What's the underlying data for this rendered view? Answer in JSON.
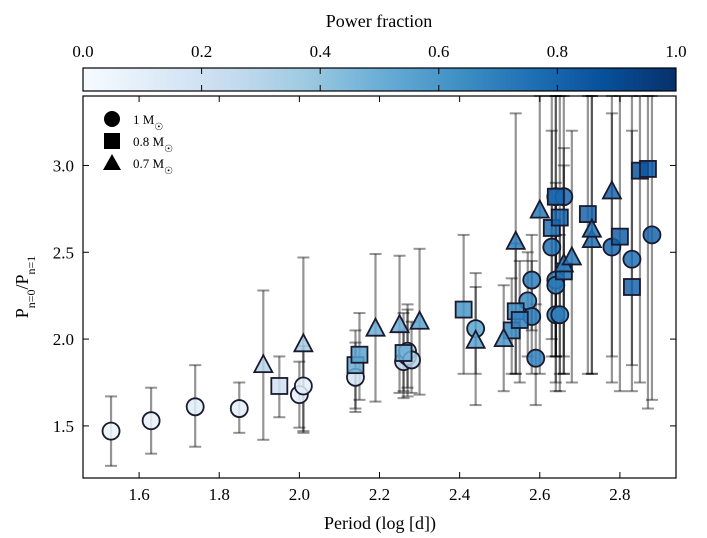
{
  "chart_data": {
    "type": "scatter",
    "xlabel": "Period (log [d])",
    "ylabel_main": "P",
    "ylabel_sub_num": "n=0",
    "ylabel_sep": "/P",
    "ylabel_sub_den": "n=1",
    "xlim": [
      1.46,
      2.94
    ],
    "ylim": [
      1.2,
      3.4
    ],
    "xticks": [
      "1.6",
      "1.8",
      "2.0",
      "2.2",
      "2.4",
      "2.6",
      "2.8"
    ],
    "yticks": [
      "1.5",
      "2.0",
      "2.5",
      "3.0"
    ],
    "grid": false,
    "colorbar": {
      "label": "Power fraction",
      "range": [
        0.0,
        1.0
      ],
      "ticks": [
        "0.0",
        "0.2",
        "0.4",
        "0.6",
        "0.8",
        "1.0"
      ],
      "colors": [
        "#f7fbff",
        "#deebf7",
        "#c6dbef",
        "#9ecae1",
        "#6baed6",
        "#4292c6",
        "#2171b5",
        "#08519c",
        "#08306b"
      ]
    },
    "legend": {
      "position": "top-left",
      "entries": [
        {
          "marker": "circle",
          "label": "1 M",
          "symbol": "☉"
        },
        {
          "marker": "square",
          "label": "0.8 M",
          "symbol": "☉"
        },
        {
          "marker": "triangle",
          "label": "0.7 M",
          "symbol": "☉"
        }
      ]
    },
    "series": [
      {
        "name": "1 M☉",
        "marker": "circle",
        "points": [
          {
            "x": 1.53,
            "y": 1.47,
            "lo": 1.27,
            "hi": 1.67,
            "c": 0.05
          },
          {
            "x": 1.63,
            "y": 1.53,
            "lo": 1.34,
            "hi": 1.72,
            "c": 0.08
          },
          {
            "x": 1.74,
            "y": 1.61,
            "lo": 1.38,
            "hi": 1.85,
            "c": 0.12
          },
          {
            "x": 1.85,
            "y": 1.6,
            "lo": 1.46,
            "hi": 1.75,
            "c": 0.1
          },
          {
            "x": 2.0,
            "y": 1.68,
            "lo": 1.49,
            "hi": 1.87,
            "c": 0.1
          },
          {
            "x": 2.01,
            "y": 1.73,
            "lo": 1.47,
            "hi": 1.96,
            "c": 0.1
          },
          {
            "x": 2.14,
            "y": 1.78,
            "lo": 1.58,
            "hi": 1.98,
            "c": 0.18
          },
          {
            "x": 2.26,
            "y": 1.87,
            "lo": 1.66,
            "hi": 2.05,
            "c": 0.25
          },
          {
            "x": 2.27,
            "y": 1.9,
            "lo": 1.67,
            "hi": 2.2,
            "c": 0.35
          },
          {
            "x": 2.27,
            "y": 1.93,
            "lo": 1.72,
            "hi": 2.17,
            "c": 0.3
          },
          {
            "x": 2.28,
            "y": 1.88,
            "lo": 1.69,
            "hi": 2.1,
            "c": 0.3
          },
          {
            "x": 2.44,
            "y": 2.06,
            "lo": 1.8,
            "hi": 2.3,
            "c": 0.55
          },
          {
            "x": 2.57,
            "y": 2.22,
            "lo": 1.9,
            "hi": 2.5,
            "c": 0.65
          },
          {
            "x": 2.58,
            "y": 2.34,
            "lo": 2.05,
            "hi": 2.6,
            "c": 0.7
          },
          {
            "x": 2.58,
            "y": 2.13,
            "lo": 1.8,
            "hi": 2.45,
            "c": 0.72
          },
          {
            "x": 2.59,
            "y": 1.89,
            "lo": 1.62,
            "hi": 2.2,
            "c": 0.68
          },
          {
            "x": 2.63,
            "y": 2.53,
            "lo": 2.0,
            "hi": 3.2,
            "c": 0.75
          },
          {
            "x": 2.64,
            "y": 2.82,
            "lo": 1.9,
            "hi": 3.4,
            "c": 0.78
          },
          {
            "x": 2.64,
            "y": 2.34,
            "lo": 1.9,
            "hi": 2.8,
            "c": 0.7
          },
          {
            "x": 2.64,
            "y": 2.31,
            "lo": 1.75,
            "hi": 2.9,
            "c": 0.72
          },
          {
            "x": 2.64,
            "y": 2.14,
            "lo": 1.7,
            "hi": 2.6,
            "c": 0.7
          },
          {
            "x": 2.65,
            "y": 2.14,
            "lo": 1.7,
            "hi": 2.6,
            "c": 0.7
          },
          {
            "x": 2.66,
            "y": 2.82,
            "lo": 1.9,
            "hi": 3.4,
            "c": 0.8
          },
          {
            "x": 2.78,
            "y": 2.53,
            "lo": 1.9,
            "hi": 3.3,
            "c": 0.78
          },
          {
            "x": 2.83,
            "y": 2.46,
            "lo": 1.85,
            "hi": 3.2,
            "c": 0.75
          },
          {
            "x": 2.88,
            "y": 2.6,
            "lo": 1.65,
            "hi": 3.4,
            "c": 0.8
          }
        ]
      },
      {
        "name": "0.8 M☉",
        "marker": "square",
        "points": [
          {
            "x": 1.95,
            "y": 1.73,
            "lo": 1.55,
            "hi": 1.9,
            "c": 0.2
          },
          {
            "x": 2.14,
            "y": 1.85,
            "lo": 1.6,
            "hi": 2.05,
            "c": 0.5
          },
          {
            "x": 2.15,
            "y": 1.91,
            "lo": 1.65,
            "hi": 2.15,
            "c": 0.55
          },
          {
            "x": 2.26,
            "y": 1.92,
            "lo": 1.7,
            "hi": 2.15,
            "c": 0.5
          },
          {
            "x": 2.41,
            "y": 2.17,
            "lo": 1.8,
            "hi": 2.6,
            "c": 0.6
          },
          {
            "x": 2.53,
            "y": 2.05,
            "lo": 1.8,
            "hi": 2.35,
            "c": 0.65
          },
          {
            "x": 2.54,
            "y": 2.16,
            "lo": 1.8,
            "hi": 2.55,
            "c": 0.65
          },
          {
            "x": 2.55,
            "y": 2.11,
            "lo": 1.75,
            "hi": 2.45,
            "c": 0.68
          },
          {
            "x": 2.63,
            "y": 2.64,
            "lo": 1.9,
            "hi": 3.4,
            "c": 0.75
          },
          {
            "x": 2.64,
            "y": 2.82,
            "lo": 1.9,
            "hi": 3.4,
            "c": 0.78
          },
          {
            "x": 2.65,
            "y": 2.7,
            "lo": 1.8,
            "hi": 3.4,
            "c": 0.8
          },
          {
            "x": 2.66,
            "y": 2.39,
            "lo": 1.8,
            "hi": 3.0,
            "c": 0.75
          },
          {
            "x": 2.72,
            "y": 2.72,
            "lo": 1.8,
            "hi": 3.4,
            "c": 0.8
          },
          {
            "x": 2.8,
            "y": 2.59,
            "lo": 1.7,
            "hi": 3.4,
            "c": 0.82
          },
          {
            "x": 2.83,
            "y": 2.3,
            "lo": 1.7,
            "hi": 3.4,
            "c": 0.8
          },
          {
            "x": 2.85,
            "y": 2.97,
            "lo": 1.75,
            "hi": 3.4,
            "c": 0.85
          },
          {
            "x": 2.87,
            "y": 2.98,
            "lo": 1.6,
            "hi": 3.4,
            "c": 0.85
          }
        ]
      },
      {
        "name": "0.7 M☉",
        "marker": "triangle",
        "points": [
          {
            "x": 1.91,
            "y": 1.85,
            "lo": 1.42,
            "hi": 2.28,
            "c": 0.3
          },
          {
            "x": 2.01,
            "y": 1.97,
            "lo": 1.46,
            "hi": 2.47,
            "c": 0.35
          },
          {
            "x": 2.19,
            "y": 2.06,
            "lo": 1.64,
            "hi": 2.49,
            "c": 0.5
          },
          {
            "x": 2.25,
            "y": 2.08,
            "lo": 1.69,
            "hi": 2.48,
            "c": 0.5
          },
          {
            "x": 2.3,
            "y": 2.1,
            "lo": 1.68,
            "hi": 2.52,
            "c": 0.55
          },
          {
            "x": 2.44,
            "y": 1.99,
            "lo": 1.62,
            "hi": 2.38,
            "c": 0.55
          },
          {
            "x": 2.51,
            "y": 2.0,
            "lo": 1.7,
            "hi": 2.31,
            "c": 0.6
          },
          {
            "x": 2.54,
            "y": 2.56,
            "lo": 1.8,
            "hi": 3.3,
            "c": 0.7
          },
          {
            "x": 2.6,
            "y": 2.74,
            "lo": 1.8,
            "hi": 3.4,
            "c": 0.72
          },
          {
            "x": 2.66,
            "y": 2.43,
            "lo": 1.8,
            "hi": 3.1,
            "c": 0.7
          },
          {
            "x": 2.68,
            "y": 2.47,
            "lo": 1.75,
            "hi": 3.2,
            "c": 0.72
          },
          {
            "x": 2.73,
            "y": 2.57,
            "lo": 1.8,
            "hi": 3.4,
            "c": 0.75
          },
          {
            "x": 2.73,
            "y": 2.63,
            "lo": 1.8,
            "hi": 3.4,
            "c": 0.75
          },
          {
            "x": 2.78,
            "y": 2.85,
            "lo": 1.75,
            "hi": 3.4,
            "c": 0.8
          }
        ]
      }
    ]
  }
}
